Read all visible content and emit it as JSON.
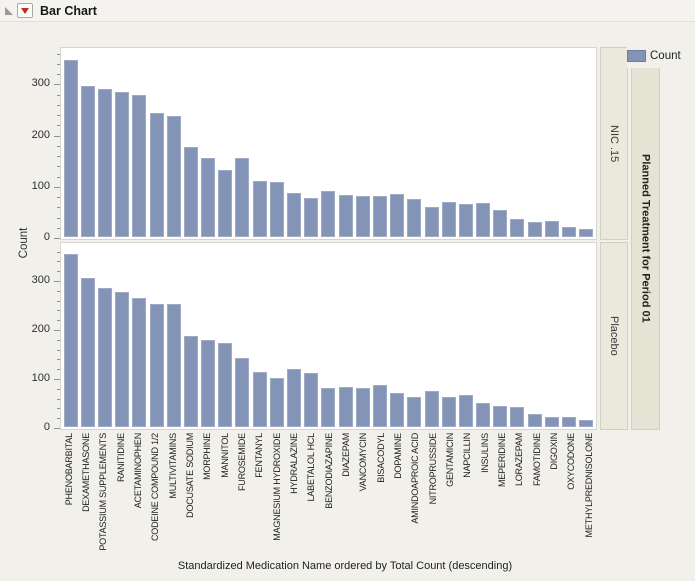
{
  "window": {
    "title": "Bar Chart"
  },
  "legend": {
    "label": "Count",
    "swatch_color": "#8494B6"
  },
  "facets": {
    "group_title": "Planned Treatment for Period 01",
    "panel_labels": [
      "NIC .15",
      "Placebo"
    ]
  },
  "chart_data": {
    "type": "bar",
    "title": "Bar Chart",
    "xlabel": "Standardized Medication Name ordered by Total Count (descending)",
    "ylabel": "Count",
    "ylim": [
      0,
      375
    ],
    "yticks": [
      0,
      100,
      200,
      300
    ],
    "minor_tick_step": 20,
    "grid": false,
    "legend_entries": [
      "Count"
    ],
    "legend_position": "top-right",
    "facet_title": "Planned Treatment for Period 01",
    "bar_color": "#8494B6",
    "categories": [
      "PHENOBARBITAL",
      "DEXAMETHASONE",
      "POTASSIUM SUPPLEMENTS",
      "RANITIDINE",
      "ACETAMINOPHEN",
      "CODEINE COMPOUND 1/2",
      "MULTIVITAMINS",
      "DOCUSATE SODIUM",
      "MORPHINE",
      "MANNITOL",
      "FUROSEMIDE",
      "FENTANYL",
      "MAGNESIUM HYDROXIDE",
      "HYDRALAZINE",
      "LABETALOL HCL",
      "BENZODIAZAPINE",
      "DIAZEPAM",
      "VANCOMYCIN",
      "BISACODYL",
      "DOPAMINE",
      "AMINDOAPROIC ACID",
      "NITROPRUSSIDE",
      "GENTAMICIN",
      "NAPCILLIN",
      "INSULINS",
      "MEPERIDINE",
      "LORAZEPAM",
      "FAMOTIDINE",
      "DIGOXIN",
      "OXYCODONE",
      "METHYLPREDNISOLONE"
    ],
    "series": [
      {
        "name": "NIC .15",
        "values": [
          345,
          294,
          290,
          283,
          277,
          242,
          236,
          176,
          155,
          130,
          155,
          109,
          107,
          86,
          76,
          90,
          83,
          81,
          81,
          84,
          75,
          59,
          68,
          64,
          66,
          53,
          35,
          29,
          32,
          20,
          15
        ]
      },
      {
        "name": "Placebo",
        "values": [
          353,
          305,
          284,
          276,
          263,
          250,
          252,
          185,
          177,
          172,
          140,
          112,
          101,
          118,
          111,
          79,
          81,
          79,
          86,
          69,
          62,
          74,
          62,
          65,
          49,
          43,
          40,
          27,
          20,
          20,
          14
        ]
      }
    ]
  }
}
